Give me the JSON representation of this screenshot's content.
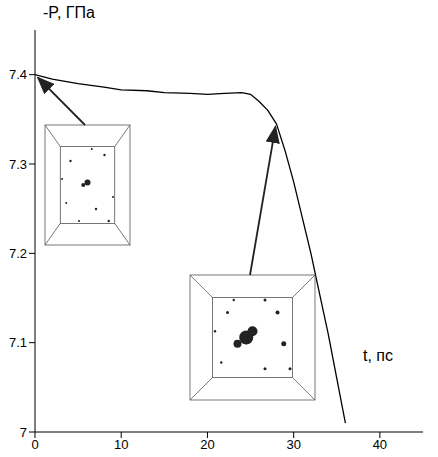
{
  "chart_data": {
    "type": "line",
    "x_label": "t, пс",
    "y_label": "-P, ГПа",
    "x": [
      0,
      2,
      5,
      8,
      10,
      13,
      15,
      18,
      20,
      22,
      24,
      25,
      26,
      27,
      28,
      29,
      30,
      31,
      32,
      33,
      34,
      35,
      36
    ],
    "values": [
      7.4,
      7.395,
      7.39,
      7.386,
      7.383,
      7.382,
      7.38,
      7.379,
      7.378,
      7.379,
      7.38,
      7.378,
      7.37,
      7.36,
      7.345,
      7.315,
      7.28,
      7.24,
      7.2,
      7.155,
      7.11,
      7.06,
      7.01
    ],
    "color": "#000000",
    "xlim": [
      0,
      45
    ],
    "xticks": [
      0,
      10,
      20,
      30,
      40
    ],
    "ylim": [
      7,
      7.45
    ],
    "yticks": [
      7,
      7.1,
      7.2,
      7.3,
      7.4
    ],
    "grid": false
  }
}
